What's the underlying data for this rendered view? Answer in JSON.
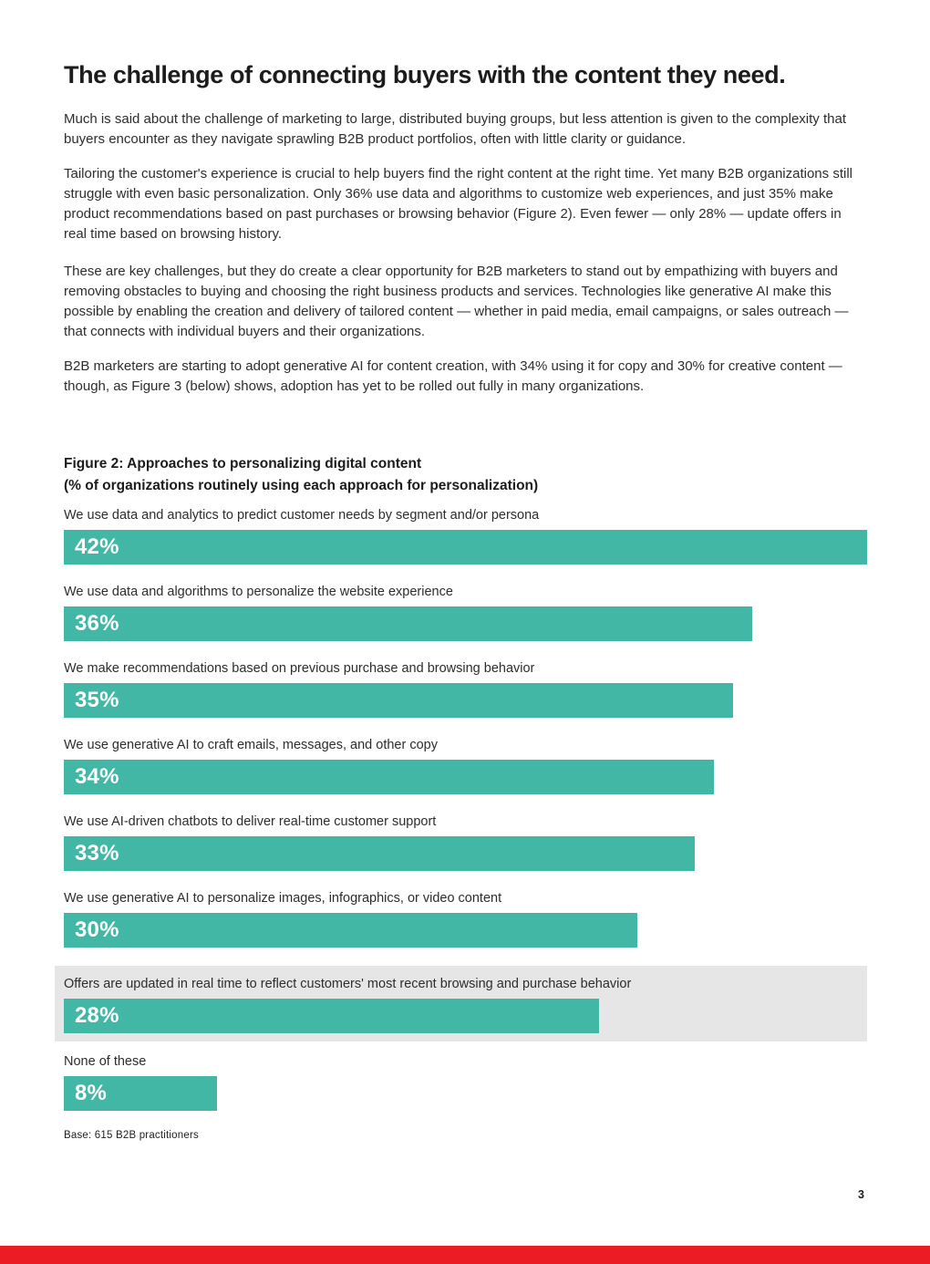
{
  "page": {
    "title": "The challenge of connecting buyers with the content they need.",
    "paragraphs": [
      "Much is said about the challenge of marketing to large, distributed buying groups, but less attention is given to the complexity that buyers encounter as they navigate sprawling B2B product portfolios, often with little clarity or guidance.",
      "Tailoring the customer's experience is crucial to help buyers find the right content at the right time. Yet many B2B organizations still struggle with even basic personalization. Only 36% use data and algorithms to customize web experiences, and just 35% make product recommendations based on past purchases or browsing behavior (Figure 2). Even fewer — only 28% — update offers in real time based on browsing history.",
      "These are key challenges, but they do create a clear opportunity for B2B marketers to stand out by empathizing with buyers and removing obstacles to buying and choosing the right business products and services. Technologies like generative AI make this possible by enabling the creation and delivery of tailored content — whether in paid media, email campaigns, or sales outreach — that connects with individual buyers and their organizations.",
      "B2B marketers are starting to adopt generative AI for content creation, with 34% using it for copy and 30% for creative content — though, as Figure 3 (below) shows, adoption has yet to be rolled out fully in many organizations."
    ],
    "footer": {
      "base_note": "Base: 615 B2B practitioners",
      "page_number": "3"
    }
  },
  "figure2": {
    "title": "Figure 2: Approaches to personalizing digital content",
    "subtitle": "(% of organizations routinely using each approach for personalization)",
    "max_value": 42,
    "rows": [
      {
        "label": "We use data and analytics to predict customer needs by segment and/or persona",
        "value": 42,
        "value_label": "42%"
      },
      {
        "label": "We use data and algorithms to personalize the website experience",
        "value": 36,
        "value_label": "36%"
      },
      {
        "label": "We make recommendations based on previous purchase and browsing behavior",
        "value": 35,
        "value_label": "35%"
      },
      {
        "label": "We use generative AI to craft emails, messages, and other copy",
        "value": 34,
        "value_label": "34%"
      },
      {
        "label": "We use AI-driven chatbots to deliver real-time customer support",
        "value": 33,
        "value_label": "33%"
      },
      {
        "label": "We use generative AI to personalize images, infographics, or video content",
        "value": 30,
        "value_label": "30%"
      },
      {
        "label": "Offers are updated in real time to reflect customers' most recent browsing and purchase behavior",
        "value": 28,
        "value_label": "28%",
        "highlighted": true
      },
      {
        "label": "None of these",
        "value": 8,
        "value_label": "8%"
      }
    ]
  },
  "chart_data": {
    "type": "bar",
    "orientation": "horizontal",
    "title": "Figure 2: Approaches to personalizing digital content",
    "subtitle": "(% of organizations routinely using each approach for personalization)",
    "categories": [
      "We use data and analytics to predict customer needs by segment and/or persona",
      "We use data and algorithms to personalize the website experience",
      "We make recommendations based on previous purchase and browsing behavior",
      "We use generative AI to craft emails, messages, and other copy",
      "We use AI-driven chatbots to deliver real-time customer support",
      "We use generative AI to personalize images, infographics, or video content",
      "Offers are updated in real time to reflect customers' most recent browsing and purchase behavior",
      "None of these"
    ],
    "values": [
      42,
      36,
      35,
      34,
      33,
      30,
      28,
      8
    ],
    "unit": "%",
    "xlim": [
      0,
      42
    ],
    "highlighted_category_index": 6,
    "annotation": "Base: 615 B2B practitioners",
    "legend": "none",
    "grid": false
  },
  "colors": {
    "bar_teal": "#42b7a6",
    "highlight_band_gray": "#e6e6e6",
    "bottom_strip_red": "#ec1c24",
    "heading_text": "#1c1c1c",
    "body_text": "#2d2d2d",
    "bar_value_text": "#ffffff"
  }
}
